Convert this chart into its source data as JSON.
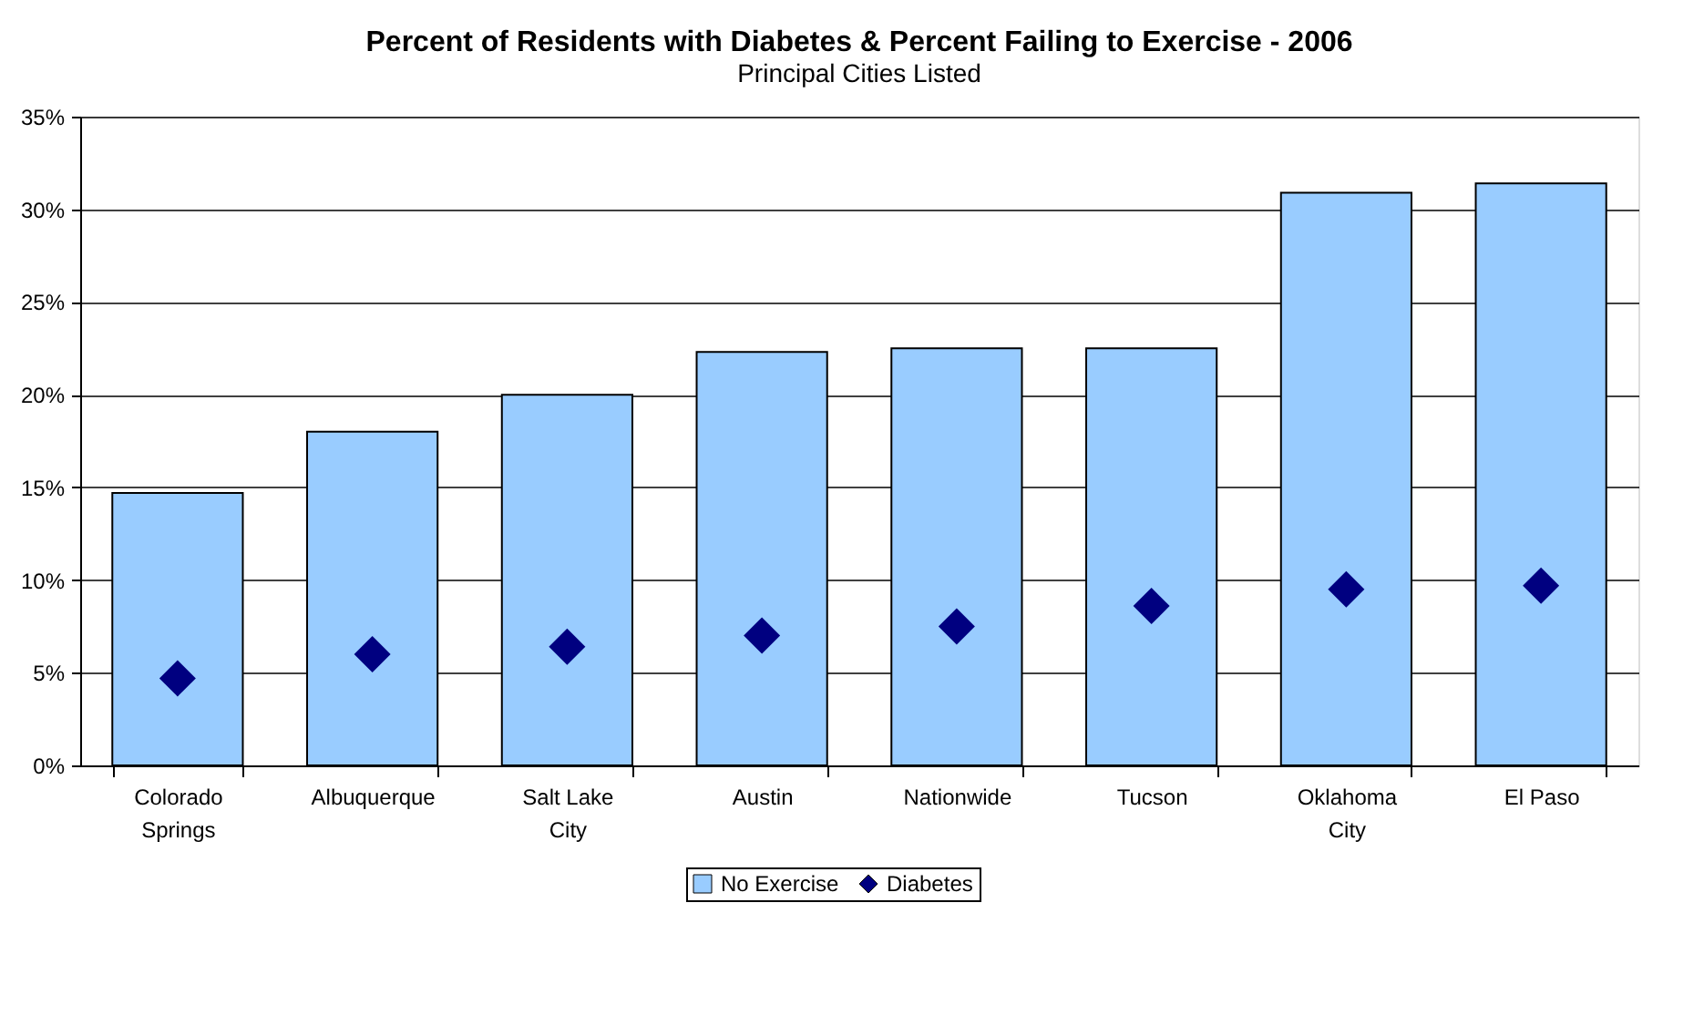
{
  "chart_data": {
    "type": "bar",
    "title": "Percent of Residents with Diabetes & Percent Failing to Exercise - 2006",
    "subtitle": "Principal Cities Listed",
    "categories": [
      "Colorado Springs",
      "Albuquerque",
      "Salt Lake City",
      "Austin",
      "Nationwide",
      "Tucson",
      "Oklahoma City",
      "El Paso"
    ],
    "series": [
      {
        "name": "No Exercise",
        "color": "#99ccff",
        "values": [
          14.7,
          18.0,
          20.0,
          22.3,
          22.5,
          22.5,
          30.9,
          31.4
        ]
      },
      {
        "name": "Diabetes",
        "type": "scatter",
        "marker": "diamond",
        "color": "#000080",
        "values": [
          4.7,
          6.0,
          6.4,
          7.0,
          7.5,
          8.6,
          9.5,
          9.7
        ]
      }
    ],
    "ylim": [
      0,
      35
    ],
    "yticks": [
      {
        "value": 0,
        "label": "0%"
      },
      {
        "value": 5,
        "label": "5%"
      },
      {
        "value": 10,
        "label": "10%"
      },
      {
        "value": 15,
        "label": "15%"
      },
      {
        "value": 20,
        "label": "20%"
      },
      {
        "value": 25,
        "label": "25%"
      },
      {
        "value": 30,
        "label": "30%"
      },
      {
        "value": 35,
        "label": "35%"
      }
    ],
    "grid": "y",
    "legend": "bottom"
  }
}
